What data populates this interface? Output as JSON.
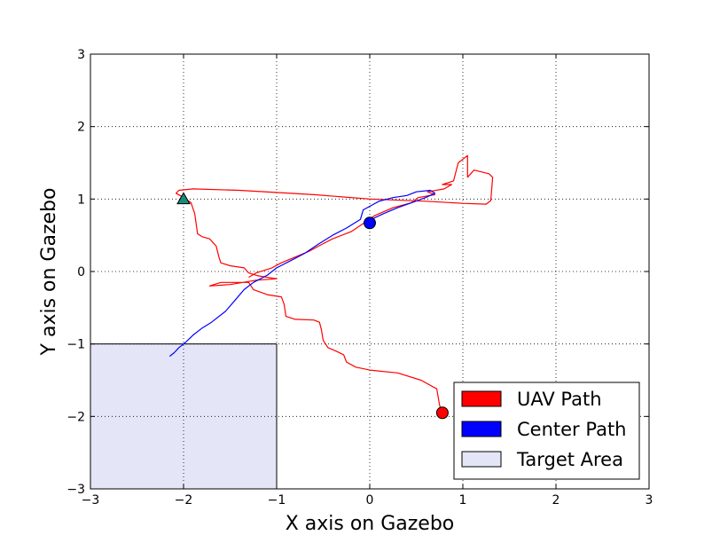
{
  "chart_data": {
    "type": "line",
    "title": "",
    "xlabel": "X axis on Gazebo",
    "ylabel": "Y axis on Gazebo",
    "xlim": [
      -3,
      3
    ],
    "ylim": [
      -3,
      3
    ],
    "xticks": [
      -3,
      -2,
      -1,
      0,
      1,
      2,
      3
    ],
    "yticks": [
      -3,
      -2,
      -1,
      0,
      1,
      2,
      3
    ],
    "xtick_labels": [
      "−3",
      "−2",
      "−1",
      "0",
      "1",
      "2",
      "3"
    ],
    "ytick_labels": [
      "−3",
      "−2",
      "−1",
      "0",
      "1",
      "2",
      "3"
    ],
    "grid": true,
    "legend_position": "bottom-right",
    "target_area": {
      "name": "Target Area",
      "x": [
        -3,
        -1
      ],
      "y": [
        -3,
        -1
      ],
      "color": "#e4e6f8"
    },
    "series": [
      {
        "name": "UAV Path",
        "color": "#ff0000",
        "points": [
          [
            0.78,
            -1.95
          ],
          [
            0.75,
            -1.85
          ],
          [
            0.72,
            -1.62
          ],
          [
            0.55,
            -1.5
          ],
          [
            0.3,
            -1.4
          ],
          [
            0.0,
            -1.36
          ],
          [
            -0.15,
            -1.32
          ],
          [
            -0.25,
            -1.25
          ],
          [
            -0.28,
            -1.15
          ],
          [
            -0.36,
            -1.1
          ],
          [
            -0.45,
            -1.05
          ],
          [
            -0.5,
            -0.95
          ],
          [
            -0.52,
            -0.8
          ],
          [
            -0.54,
            -0.7
          ],
          [
            -0.6,
            -0.67
          ],
          [
            -0.8,
            -0.66
          ],
          [
            -0.9,
            -0.62
          ],
          [
            -0.92,
            -0.45
          ],
          [
            -0.95,
            -0.35
          ],
          [
            -1.1,
            -0.32
          ],
          [
            -1.25,
            -0.25
          ],
          [
            -1.3,
            -0.15
          ],
          [
            -1.6,
            -0.15
          ],
          [
            -1.72,
            -0.2
          ],
          [
            -1.5,
            -0.18
          ],
          [
            -1.22,
            -0.12
          ],
          [
            -1.0,
            -0.1
          ],
          [
            -1.2,
            -0.06
          ],
          [
            -1.3,
            -0.02
          ],
          [
            -1.35,
            0.05
          ],
          [
            -1.5,
            0.08
          ],
          [
            -1.6,
            0.12
          ],
          [
            -1.62,
            0.2
          ],
          [
            -1.65,
            0.35
          ],
          [
            -1.72,
            0.45
          ],
          [
            -1.8,
            0.48
          ],
          [
            -1.85,
            0.52
          ],
          [
            -1.88,
            0.8
          ],
          [
            -1.92,
            0.95
          ],
          [
            -2.0,
            1.02
          ],
          [
            -2.08,
            1.08
          ],
          [
            -2.05,
            1.12
          ],
          [
            -1.9,
            1.14
          ],
          [
            -1.4,
            1.12
          ],
          [
            -0.6,
            1.06
          ],
          [
            0.0,
            1.0
          ],
          [
            0.6,
            0.97
          ],
          [
            1.0,
            0.94
          ],
          [
            1.25,
            0.93
          ],
          [
            1.3,
            0.98
          ],
          [
            1.32,
            1.3
          ],
          [
            1.28,
            1.35
          ],
          [
            1.12,
            1.4
          ],
          [
            1.05,
            1.3
          ],
          [
            1.05,
            1.6
          ],
          [
            0.95,
            1.5
          ],
          [
            0.9,
            1.25
          ],
          [
            0.78,
            1.2
          ],
          [
            0.88,
            1.2
          ],
          [
            0.8,
            1.14
          ],
          [
            0.62,
            1.1
          ],
          [
            0.7,
            1.06
          ],
          [
            0.52,
            1.02
          ],
          [
            0.45,
            0.95
          ],
          [
            0.25,
            0.88
          ],
          [
            0.05,
            0.77
          ],
          [
            -0.05,
            0.68
          ],
          [
            -0.2,
            0.55
          ],
          [
            -0.4,
            0.45
          ],
          [
            -0.55,
            0.35
          ],
          [
            -0.65,
            0.28
          ],
          [
            -0.8,
            0.2
          ],
          [
            -0.95,
            0.12
          ],
          [
            -1.05,
            0.05
          ],
          [
            -1.22,
            -0.02
          ],
          [
            -1.3,
            -0.08
          ]
        ]
      },
      {
        "name": "Center Path",
        "color": "#0000ff",
        "points": [
          [
            -2.15,
            -1.17
          ],
          [
            -2.1,
            -1.12
          ],
          [
            -2.05,
            -1.05
          ],
          [
            -1.98,
            -0.98
          ],
          [
            -1.9,
            -0.88
          ],
          [
            -1.8,
            -0.78
          ],
          [
            -1.7,
            -0.7
          ],
          [
            -1.55,
            -0.55
          ],
          [
            -1.45,
            -0.4
          ],
          [
            -1.35,
            -0.25
          ],
          [
            -1.25,
            -0.15
          ],
          [
            -1.1,
            -0.05
          ],
          [
            -1.0,
            0.05
          ],
          [
            -0.85,
            0.15
          ],
          [
            -0.7,
            0.25
          ],
          [
            -0.55,
            0.38
          ],
          [
            -0.4,
            0.5
          ],
          [
            -0.25,
            0.6
          ],
          [
            -0.1,
            0.72
          ],
          [
            -0.07,
            0.85
          ],
          [
            0.0,
            0.9
          ],
          [
            0.1,
            0.97
          ],
          [
            0.25,
            1.02
          ],
          [
            0.4,
            1.05
          ],
          [
            0.5,
            1.1
          ],
          [
            0.65,
            1.12
          ],
          [
            0.7,
            1.08
          ],
          [
            0.6,
            1.02
          ],
          [
            0.45,
            0.95
          ],
          [
            0.3,
            0.88
          ],
          [
            0.15,
            0.8
          ],
          [
            0.05,
            0.74
          ],
          [
            0.0,
            0.67
          ]
        ]
      }
    ],
    "markers": [
      {
        "name": "start",
        "shape": "triangle",
        "x": -2.0,
        "y": 1.0,
        "color": "#1a8a7a"
      },
      {
        "name": "uav-current",
        "shape": "circle",
        "x": 0.78,
        "y": -1.95,
        "color": "#ff0000"
      },
      {
        "name": "center-current",
        "shape": "circle",
        "x": 0.0,
        "y": 0.67,
        "color": "#0000ff"
      }
    ],
    "legend": [
      {
        "label": "UAV Path",
        "color": "#ff0000"
      },
      {
        "label": "Center Path",
        "color": "#0000ff"
      },
      {
        "label": "Target Area",
        "color": "#e4e6f8"
      }
    ]
  }
}
